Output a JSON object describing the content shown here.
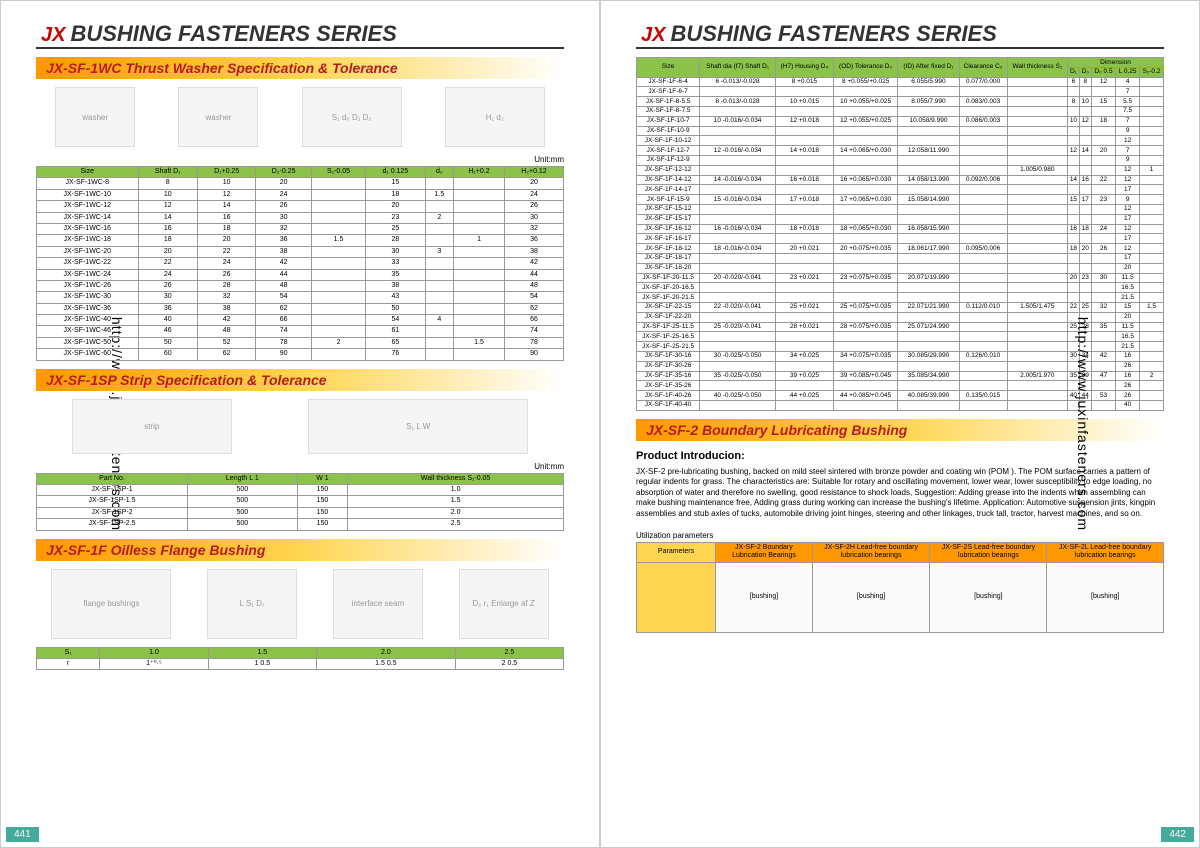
{
  "url": "http://www.juxinfasteners.com",
  "main_title": "BUSHING FASTENERS SERIES",
  "page_left": "441",
  "page_right": "442",
  "s1": {
    "title": "JX-SF-1WC Thrust Washer Specification & Tolerance",
    "unit": "Unit:mm",
    "h": [
      "Size",
      "Shaft D₁",
      "D₁+0.25",
      "D₂-0.25",
      "S₁-0.05",
      "d₁ 0.125",
      "d₂",
      "H₁+0.2",
      "H₂+0.12"
    ],
    "hg": [
      "",
      "",
      "Washer size",
      "",
      "",
      "Assemble size",
      "",
      "",
      ""
    ],
    "r": [
      [
        "JX-SF-1WC-8",
        "8",
        "10",
        "20",
        "",
        "15",
        "",
        "",
        "20"
      ],
      [
        "JX-SF-1WC-10",
        "10",
        "12",
        "24",
        "",
        "18",
        "1.5",
        "",
        "24"
      ],
      [
        "JX-SF-1WC-12",
        "12",
        "14",
        "26",
        "",
        "20",
        "",
        "",
        "26"
      ],
      [
        "JX-SF-1WC-14",
        "14",
        "16",
        "30",
        "",
        "23",
        "2",
        "",
        "30"
      ],
      [
        "JX-SF-1WC-16",
        "16",
        "18",
        "32",
        "",
        "25",
        "",
        "",
        "32"
      ],
      [
        "JX-SF-1WC-18",
        "18",
        "20",
        "36",
        "1.5",
        "28",
        "",
        "1",
        "36"
      ],
      [
        "JX-SF-1WC-20",
        "20",
        "22",
        "38",
        "",
        "30",
        "3",
        "",
        "38"
      ],
      [
        "JX-SF-1WC-22",
        "22",
        "24",
        "42",
        "",
        "33",
        "",
        "",
        "42"
      ],
      [
        "JX-SF-1WC-24",
        "24",
        "26",
        "44",
        "",
        "35",
        "",
        "",
        "44"
      ],
      [
        "JX-SF-1WC-26",
        "26",
        "28",
        "48",
        "",
        "38",
        "",
        "",
        "48"
      ],
      [
        "JX-SF-1WC-30",
        "30",
        "32",
        "54",
        "",
        "43",
        "",
        "",
        "54"
      ],
      [
        "JX-SF-1WC-36",
        "36",
        "38",
        "62",
        "",
        "50",
        "",
        "",
        "62"
      ],
      [
        "JX-SF-1WC-40",
        "40",
        "42",
        "66",
        "",
        "54",
        "4",
        "",
        "66"
      ],
      [
        "JX-SF-1WC-46",
        "46",
        "48",
        "74",
        "",
        "61",
        "",
        "",
        "74"
      ],
      [
        "JX-SF-1WC-50",
        "50",
        "52",
        "78",
        "2",
        "65",
        "",
        "1.5",
        "78"
      ],
      [
        "JX-SF-1WC-60",
        "60",
        "62",
        "90",
        "",
        "76",
        "",
        "",
        "90"
      ]
    ]
  },
  "s2": {
    "title": "JX-SF-1SP Strip Specification & Tolerance",
    "unit": "Unit:mm",
    "h": [
      "Part No.",
      "Length L 1",
      "W 1",
      "Wall thickness S₁-0.05"
    ],
    "r": [
      [
        "JX-SF-1SP-1",
        "500",
        "150",
        "1.0"
      ],
      [
        "JX-SF-1SP-1.5",
        "500",
        "150",
        "1.5"
      ],
      [
        "JX-SF-1SP-2",
        "500",
        "150",
        "2.0"
      ],
      [
        "JX-SF-1SP-2.5",
        "500",
        "150",
        "2.5"
      ]
    ]
  },
  "s3": {
    "title": "JX-SF-1F  Oilless Flange Bushing",
    "h": [
      "S₁",
      "1.0",
      "1.5",
      "2.0",
      "2.5"
    ],
    "r": [
      [
        "r",
        "1⁺⁰·⁵",
        "1 0.5",
        "1.5 0.5",
        "2 0.5"
      ]
    ]
  },
  "s4": {
    "h1": [
      "Size",
      "Shaft dia (f7) Shaft D₁",
      "(H7) Housing D₄",
      "(OD) Tolerance D₀",
      "(ID) After fixed D₁",
      "Clearance C₀",
      "Wall thickness S₁",
      "D₁",
      "D₀",
      "D₀ 0.5",
      "L 0.25",
      "S₁-0.2"
    ],
    "hg": "Dimension",
    "r": [
      [
        "JX-SF-1F-6-4",
        "6 -0.013/-0.028",
        "8 +0.015",
        "8 +0.055/+0.025",
        "6.055/5.990",
        "0.077/0.000",
        "",
        "6",
        "8",
        "12",
        "4",
        ""
      ],
      [
        "JX-SF-1F-6-7",
        "",
        "",
        "",
        "",
        "",
        "",
        "",
        "",
        "",
        "7",
        ""
      ],
      [
        "JX-SF-1F-8-5.5",
        "8 -0.013/-0.028",
        "10 +0.015",
        "10 +0.055/+0.025",
        "8.055/7.990",
        "0.083/0.003",
        "",
        "8",
        "10",
        "15",
        "5.5",
        ""
      ],
      [
        "JX-SF-1F-8-7.5",
        "",
        "",
        "",
        "",
        "",
        "",
        "",
        "",
        "",
        "7.5",
        ""
      ],
      [
        "JX-SF-1F-10-7",
        "10 -0.016/-0.034",
        "12 +0.018",
        "12 +0.055/+0.025",
        "10.058/9.990",
        "0.086/0.003",
        "",
        "10",
        "12",
        "18",
        "7",
        ""
      ],
      [
        "JX-SF-1F-10-9",
        "",
        "",
        "",
        "",
        "",
        "",
        "",
        "",
        "",
        "9",
        ""
      ],
      [
        "JX-SF-1F-10-12",
        "",
        "",
        "",
        "",
        "",
        "",
        "",
        "",
        "",
        "12",
        ""
      ],
      [
        "JX-SF-1F-12-7",
        "12 -0.016/-0.034",
        "14 +0.018",
        "14 +0.065/+0.030",
        "12.058/11.990",
        "",
        "",
        "12",
        "14",
        "20",
        "7",
        ""
      ],
      [
        "JX-SF-1F-12-9",
        "",
        "",
        "",
        "",
        "",
        "",
        "",
        "",
        "",
        "9",
        ""
      ],
      [
        "JX-SF-1F-12-12",
        "",
        "",
        "",
        "",
        "",
        "1.005/0.980",
        "",
        "",
        "",
        "12",
        "1"
      ],
      [
        "JX-SF-1F-14-12",
        "14 -0.016/-0.034",
        "16 +0.018",
        "16 +0.065/+0.030",
        "14.058/13.990",
        "0.092/0.006",
        "",
        "14",
        "16",
        "22",
        "12",
        ""
      ],
      [
        "JX-SF-1F-14-17",
        "",
        "",
        "",
        "",
        "",
        "",
        "",
        "",
        "",
        "17",
        ""
      ],
      [
        "JX-SF-1F-15-9",
        "15 -0.016/-0.034",
        "17 +0.018",
        "17 +0.065/+0.030",
        "15.058/14.990",
        "",
        "",
        "15",
        "17",
        "23",
        "9",
        ""
      ],
      [
        "JX-SF-1F-15-12",
        "",
        "",
        "",
        "",
        "",
        "",
        "",
        "",
        "",
        "12",
        ""
      ],
      [
        "JX-SF-1F-15-17",
        "",
        "",
        "",
        "",
        "",
        "",
        "",
        "",
        "",
        "17",
        ""
      ],
      [
        "JX-SF-1F-16-12",
        "16 -0.016/-0.034",
        "18 +0.018",
        "18 +0.065/+0.030",
        "16.058/15.990",
        "",
        "",
        "16",
        "18",
        "24",
        "12",
        ""
      ],
      [
        "JX-SF-1F-16-17",
        "",
        "",
        "",
        "",
        "",
        "",
        "",
        "",
        "",
        "17",
        ""
      ],
      [
        "JX-SF-1F-18-12",
        "18 -0.016/-0.034",
        "20 +0.021",
        "20 +0.075/+0.035",
        "18.061/17.990",
        "0.095/0.006",
        "",
        "18",
        "20",
        "26",
        "12",
        ""
      ],
      [
        "JX-SF-1F-18-17",
        "",
        "",
        "",
        "",
        "",
        "",
        "",
        "",
        "",
        "17",
        ""
      ],
      [
        "JX-SF-1F-18-20",
        "",
        "",
        "",
        "",
        "",
        "",
        "",
        "",
        "",
        "20",
        ""
      ],
      [
        "JX-SF-1F-20-11.5",
        "20 -0.020/-0.041",
        "23 +0.021",
        "23 +0.075/+0.035",
        "20.071/19.990",
        "",
        "",
        "20",
        "23",
        "30",
        "11.5",
        ""
      ],
      [
        "JX-SF-1F-20-16.5",
        "",
        "",
        "",
        "",
        "",
        "",
        "",
        "",
        "",
        "16.5",
        ""
      ],
      [
        "JX-SF-1F-20-21.5",
        "",
        "",
        "",
        "",
        "",
        "",
        "",
        "",
        "",
        "21.5",
        ""
      ],
      [
        "JX-SF-1F-22-15",
        "22 -0.020/-0.041",
        "25 +0.021",
        "25 +0.075/+0.035",
        "22.071/21.990",
        "0.112/0.010",
        "1.505/1.475",
        "22",
        "25",
        "32",
        "15",
        "1.5"
      ],
      [
        "JX-SF-1F-22-20",
        "",
        "",
        "",
        "",
        "",
        "",
        "",
        "",
        "",
        "20",
        ""
      ],
      [
        "JX-SF-1F-25-11.5",
        "25 -0.020/-0.041",
        "28 +0.021",
        "28 +0.075/+0.035",
        "25.071/24.990",
        "",
        "",
        "25",
        "28",
        "35",
        "11.5",
        ""
      ],
      [
        "JX-SF-1F-25-16.5",
        "",
        "",
        "",
        "",
        "",
        "",
        "",
        "",
        "",
        "16.5",
        ""
      ],
      [
        "JX-SF-1F-25-21.5",
        "",
        "",
        "",
        "",
        "",
        "",
        "",
        "",
        "",
        "21.5",
        ""
      ],
      [
        "JX-SF-1F-30-16",
        "30 -0.025/-0.050",
        "34 +0.025",
        "34 +0.075/+0.035",
        "30.085/29.990",
        "0.126/0.010",
        "",
        "30",
        "34",
        "42",
        "16",
        ""
      ],
      [
        "JX-SF-1F-30-26",
        "",
        "",
        "",
        "",
        "",
        "",
        "",
        "",
        "",
        "26",
        ""
      ],
      [
        "JX-SF-1F-35-16",
        "35 -0.025/-0.050",
        "39 +0.025",
        "39 +0.085/+0.045",
        "35.085/34.990",
        "",
        "2.005/1.970",
        "35",
        "39",
        "47",
        "16",
        "2"
      ],
      [
        "JX-SF-1F-35-26",
        "",
        "",
        "",
        "",
        "",
        "",
        "",
        "",
        "",
        "26",
        ""
      ],
      [
        "JX-SF-1F-40-26",
        "40 -0.025/-0.050",
        "44 +0.025",
        "44 +0.085/+0.045",
        "40.085/39.990",
        "0.135/0.015",
        "",
        "40",
        "44",
        "53",
        "26",
        ""
      ],
      [
        "JX-SF-1F-40-40",
        "",
        "",
        "",
        "",
        "",
        "",
        "",
        "",
        "",
        "40",
        ""
      ]
    ]
  },
  "s5": {
    "title": "JX-SF-2 Boundary Lubricating Bushing",
    "intro_h": "Product Introducion:",
    "intro": "JX-SF-2 pre-lubricating bushing, backed on mild steel sintered with bronze powder and coating win (POM ). The POM surface carries a pattern of regular indents for grass. The characteristics are: Suitable  for rotary and oscillating movement, lower wear, lower susceptibility to edge loading, no absorption of water and therefore no swelling, good resistance to shock loads, Suggestion: Adding grease into the indents when assembling can make bushing maintenance free, Adding grass during working can increase the bushing's lifetime. Application: Automotive suspension jints, kingpin assemblies and stub axles of tucks, automobile driving joint hinges, steering and other linkages, truck tall, tractor, harvest machines, and so on.",
    "util": "Utilization parameters",
    "params": [
      "Parameters",
      "JX-SF-2 Boundary Lubrication Bearings",
      "JX-SF-2H Lead-free boundary lubrication bearings",
      "JX-SF-2S Lead-free boundary lubrication bearings",
      "JX-SF-2L Lead-free boundary lubrication bearings"
    ]
  }
}
